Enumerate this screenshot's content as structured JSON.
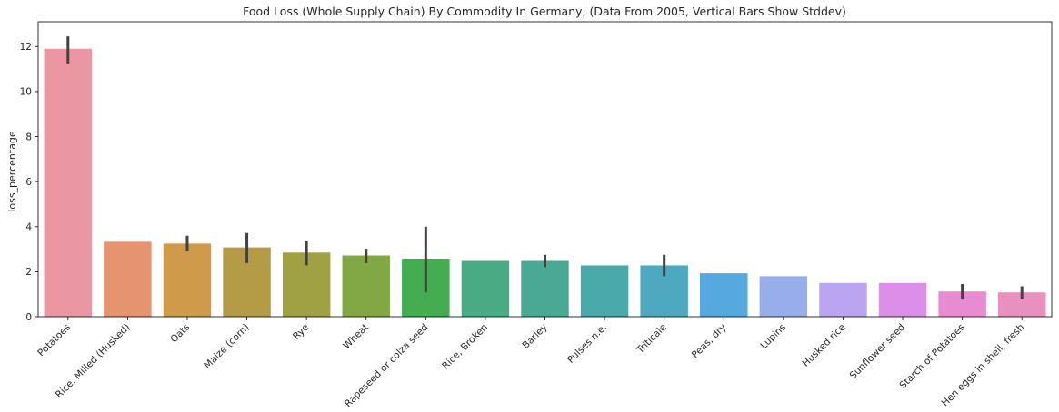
{
  "chart_data": {
    "type": "bar",
    "title": "Food Loss (Whole Supply Chain) By Commodity In Germany, (Data From 2005, Vertical Bars Show Stddev)",
    "xlabel": "",
    "ylabel": "loss_percentage",
    "ylim": [
      0,
      13.1
    ],
    "yticks": [
      0,
      2,
      4,
      6,
      8,
      10,
      12
    ],
    "grid": false,
    "legend": "none",
    "categories": [
      "Potatoes",
      "Rice, Milled (Husked)",
      "Oats",
      "Maize (corn)",
      "Rye",
      "Wheat",
      "Rapeseed or colza seed",
      "Rice, Broken",
      "Barley",
      "Pulses n.e.",
      "Triticale",
      "Peas, dry",
      "Lupins",
      "Husked rice",
      "Sunflower seed",
      "Starch of Potatoes",
      "Hen eggs in shell, fresh"
    ],
    "values": [
      11.9,
      3.33,
      3.25,
      3.08,
      2.85,
      2.72,
      2.58,
      2.48,
      2.48,
      2.28,
      2.28,
      1.93,
      1.8,
      1.5,
      1.5,
      1.12,
      1.08
    ],
    "err_low": [
      11.25,
      null,
      2.9,
      2.38,
      2.28,
      2.38,
      1.08,
      null,
      2.2,
      null,
      1.8,
      null,
      null,
      null,
      null,
      0.78,
      0.78
    ],
    "err_high": [
      12.45,
      null,
      3.6,
      3.72,
      3.35,
      3.02,
      4.0,
      null,
      2.75,
      null,
      2.75,
      null,
      null,
      null,
      null,
      1.45,
      1.35
    ],
    "colors": [
      "#ea96a3",
      "#e5946f",
      "#cf9a4a",
      "#b49b46",
      "#9fa142",
      "#82a845",
      "#44ad52",
      "#48ab83",
      "#49a995",
      "#4aaaa9",
      "#4ca9c0",
      "#55a9de",
      "#98aeea",
      "#bba5f0",
      "#dc8fe8",
      "#e88bd1",
      "#e891be"
    ]
  }
}
